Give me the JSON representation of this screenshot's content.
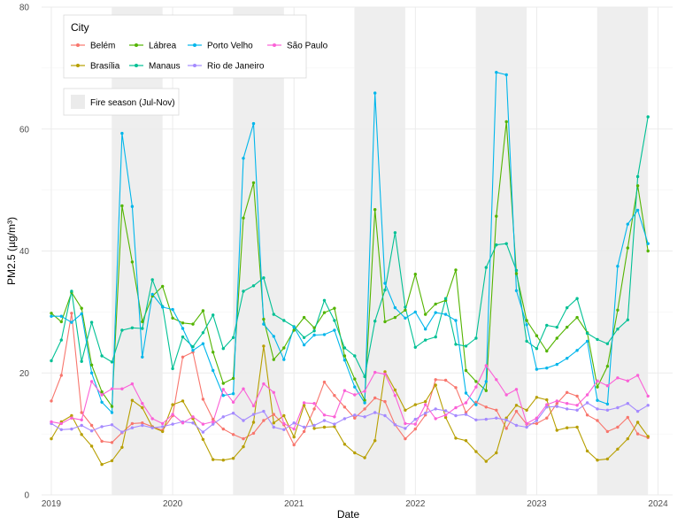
{
  "chart_data": {
    "type": "line",
    "title": "",
    "xlabel": "Date",
    "ylabel": "PM2.5 (µg/m³)",
    "ylim": [
      0,
      80
    ],
    "yticks": [
      0,
      20,
      40,
      60,
      80
    ],
    "xlim": [
      2019.0,
      2024.0
    ],
    "xticks": [
      {
        "value": 2019,
        "label": "2019"
      },
      {
        "value": 2020,
        "label": "2020"
      },
      {
        "value": 2021,
        "label": "2021"
      },
      {
        "value": 2022,
        "label": "2022"
      },
      {
        "value": 2023,
        "label": "2023"
      },
      {
        "value": 2024,
        "label": "2024"
      }
    ],
    "x": [
      2019.0,
      2019.083,
      2019.167,
      2019.25,
      2019.333,
      2019.417,
      2019.5,
      2019.583,
      2019.667,
      2019.75,
      2019.833,
      2019.917,
      2020.0,
      2020.083,
      2020.167,
      2020.25,
      2020.333,
      2020.417,
      2020.5,
      2020.583,
      2020.667,
      2020.75,
      2020.833,
      2020.917,
      2021.0,
      2021.083,
      2021.167,
      2021.25,
      2021.333,
      2021.417,
      2021.5,
      2021.583,
      2021.667,
      2021.75,
      2021.833,
      2021.917,
      2022.0,
      2022.083,
      2022.167,
      2022.25,
      2022.333,
      2022.417,
      2022.5,
      2022.583,
      2022.667,
      2022.75,
      2022.833,
      2022.917,
      2023.0,
      2023.083,
      2023.167,
      2023.25,
      2023.333,
      2023.417,
      2023.5,
      2023.583,
      2023.667,
      2023.75,
      2023.833,
      2023.917
    ],
    "shaded_regions": {
      "label": "Fire season (Jul-Nov)",
      "color": "#ebebeb",
      "ranges": [
        [
          2019.5,
          2019.917
        ],
        [
          2020.5,
          2020.917
        ],
        [
          2021.5,
          2021.917
        ],
        [
          2022.5,
          2022.917
        ],
        [
          2023.5,
          2023.917
        ]
      ]
    },
    "legend": {
      "title": "City",
      "position": "top-left",
      "columns": [
        [
          "Belém",
          "Brasília"
        ],
        [
          "Lábrea",
          "Manaus"
        ],
        [
          "Porto Velho",
          "Rio de Janeiro"
        ],
        [
          "São Paulo"
        ]
      ]
    },
    "series": [
      {
        "name": "Belém",
        "color": "#F8766D",
        "values": [
          15.4,
          19.6,
          29.8,
          13.5,
          11.4,
          8.8,
          8.6,
          10.2,
          11.7,
          11.8,
          11.2,
          10.6,
          13.0,
          22.6,
          23.4,
          15.7,
          12.4,
          10.8,
          9.9,
          9.2,
          10.1,
          12.2,
          13.2,
          11.5,
          8.2,
          10.4,
          14.1,
          18.5,
          16.3,
          14.4,
          12.6,
          14.1,
          15.9,
          15.3,
          11.5,
          9.2,
          10.8,
          13.1,
          18.9,
          18.8,
          17.6,
          13.5,
          15.2,
          14.4,
          13.9,
          10.9,
          13.7,
          11.6,
          11.7,
          12.6,
          15.0,
          16.8,
          16.2,
          13.1,
          12.2,
          10.4,
          11.1,
          12.7,
          10.0,
          9.4
        ]
      },
      {
        "name": "Brasília",
        "color": "#B79F00",
        "values": [
          9.2,
          12.0,
          13.0,
          9.9,
          8.0,
          5.0,
          5.6,
          7.8,
          15.5,
          14.3,
          11.1,
          10.4,
          14.8,
          15.4,
          12.5,
          9.1,
          5.8,
          5.7,
          6.0,
          7.9,
          11.9,
          24.4,
          11.8,
          13.0,
          9.5,
          14.7,
          10.9,
          11.1,
          11.2,
          8.3,
          6.9,
          6.1,
          8.9,
          20.2,
          17.2,
          13.9,
          14.8,
          15.3,
          18.0,
          12.7,
          9.3,
          8.9,
          7.1,
          5.5,
          6.9,
          12.6,
          14.7,
          13.9,
          16.0,
          15.6,
          10.6,
          11.0,
          11.1,
          7.2,
          5.7,
          5.9,
          7.5,
          9.2,
          11.9,
          9.6
        ]
      },
      {
        "name": "Lábrea",
        "color": "#53B400",
        "values": [
          29.8,
          28.4,
          33.2,
          30.6,
          21.3,
          16.9,
          14.5,
          47.4,
          38.2,
          28.4,
          32.6,
          34.2,
          29.0,
          28.2,
          28.0,
          30.2,
          23.4,
          18.3,
          19.1,
          45.4,
          51.2,
          28.8,
          22.2,
          24.1,
          27.0,
          29.1,
          27.4,
          29.9,
          30.6,
          22.8,
          19.0,
          15.5,
          46.8,
          28.4,
          29.1,
          30.3,
          36.2,
          29.6,
          31.3,
          31.9,
          36.9,
          20.4,
          18.6,
          17.1,
          45.7,
          61.2,
          36.3,
          28.6,
          26.1,
          23.6,
          25.7,
          27.5,
          29.1,
          26.6,
          17.7,
          21.1,
          30.3,
          40.5,
          50.7,
          40.0
        ]
      },
      {
        "name": "Manaus",
        "color": "#00C094",
        "values": [
          22.0,
          25.4,
          33.4,
          21.9,
          28.3,
          22.8,
          21.8,
          27.0,
          27.4,
          27.3,
          35.3,
          30.9,
          20.7,
          25.9,
          24.3,
          26.6,
          29.5,
          24.0,
          25.8,
          33.4,
          34.3,
          35.6,
          29.6,
          28.6,
          27.6,
          25.8,
          26.9,
          31.9,
          28.6,
          24.1,
          22.8,
          19.4,
          28.5,
          33.6,
          43.0,
          30.8,
          24.2,
          25.4,
          25.9,
          32.2,
          24.7,
          24.4,
          25.7,
          37.3,
          41.0,
          41.2,
          36.8,
          25.2,
          24.0,
          27.8,
          27.5,
          30.7,
          32.2,
          26.5,
          25.5,
          24.8,
          27.2,
          28.7,
          52.2,
          62.0
        ]
      },
      {
        "name": "Porto Velho",
        "color": "#00B6EB",
        "values": [
          29.3,
          29.3,
          28.3,
          29.7,
          20.0,
          15.2,
          13.5,
          59.3,
          47.3,
          22.6,
          32.9,
          30.8,
          30.4,
          27.3,
          23.7,
          24.8,
          20.4,
          16.3,
          16.6,
          55.2,
          60.9,
          28.0,
          26.0,
          22.2,
          27.5,
          24.6,
          26.2,
          26.3,
          27.0,
          22.1,
          17.7,
          15.1,
          65.9,
          34.7,
          30.7,
          29.0,
          30.0,
          27.2,
          29.9,
          29.6,
          28.6,
          16.7,
          14.8,
          18.6,
          69.3,
          68.9,
          33.5,
          27.9,
          20.6,
          20.8,
          21.4,
          22.4,
          23.7,
          25.2,
          15.5,
          14.9,
          37.5,
          44.4,
          46.7,
          41.2
        ]
      },
      {
        "name": "Rio de Janeiro",
        "color": "#A58AFF",
        "values": [
          11.7,
          10.7,
          10.8,
          11.4,
          10.5,
          11.2,
          11.5,
          10.3,
          11.0,
          11.4,
          11.0,
          11.2,
          11.6,
          12.0,
          11.8,
          10.3,
          11.6,
          12.8,
          13.4,
          12.2,
          13.2,
          13.7,
          11.1,
          10.7,
          11.8,
          11.1,
          11.4,
          12.2,
          11.6,
          12.5,
          13.1,
          12.8,
          13.5,
          13.0,
          11.5,
          10.9,
          12.4,
          13.4,
          14.1,
          13.8,
          13.0,
          13.2,
          12.3,
          12.4,
          12.6,
          12.3,
          11.4,
          11.1,
          12.2,
          14.4,
          14.5,
          14.1,
          13.9,
          15.1,
          14.1,
          13.9,
          14.3,
          15.0,
          13.7,
          14.7
        ]
      },
      {
        "name": "São Paulo",
        "color": "#FB61D7",
        "values": [
          12.0,
          11.7,
          12.6,
          12.3,
          18.6,
          16.4,
          17.4,
          17.4,
          18.2,
          15.0,
          12.5,
          11.7,
          13.2,
          11.8,
          12.8,
          11.6,
          12.0,
          17.3,
          15.2,
          17.4,
          14.6,
          18.2,
          16.8,
          11.7,
          10.8,
          15.1,
          15.0,
          13.1,
          12.8,
          17.1,
          16.4,
          17.0,
          20.1,
          19.8,
          16.3,
          11.7,
          11.6,
          14.8,
          12.5,
          13.1,
          14.3,
          15.1,
          17.7,
          21.2,
          18.9,
          16.4,
          17.3,
          11.7,
          12.6,
          14.8,
          15.4,
          15.0,
          14.7,
          16.4,
          18.7,
          17.9,
          19.2,
          18.7,
          19.6,
          16.2
        ]
      }
    ]
  }
}
